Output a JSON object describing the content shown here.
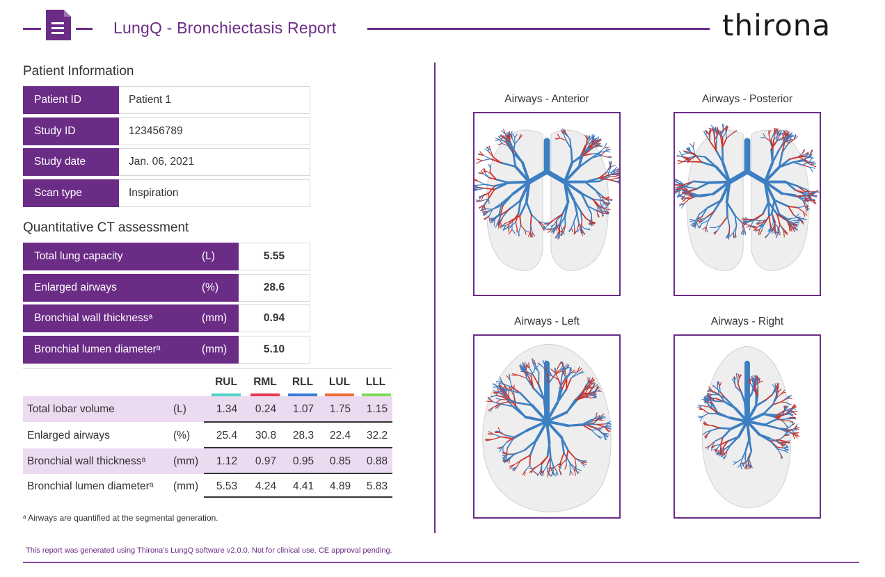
{
  "header": {
    "title": "LungQ - Bronchiectasis Report",
    "logo_text": "thirona",
    "icon": "document-icon",
    "accent_color": "#6b2c86"
  },
  "patient_info": {
    "title": "Patient Information",
    "rows": [
      {
        "label": "Patient ID",
        "value": "Patient 1"
      },
      {
        "label": "Study ID",
        "value": "123456789"
      },
      {
        "label": "Study date",
        "value": "Jan. 06, 2021"
      },
      {
        "label": "Scan type",
        "value": "Inspiration"
      }
    ]
  },
  "quantitative": {
    "title": "Quantitative CT assessment",
    "rows": [
      {
        "label": "Total lung capacity",
        "unit": "(L)",
        "value": "5.55"
      },
      {
        "label": "Enlarged airways",
        "unit": "(%)",
        "value": "28.6"
      },
      {
        "label": "Bronchial wall thicknessᵃ",
        "unit": "(mm)",
        "value": "0.94"
      },
      {
        "label": "Bronchial lumen diameterᵃ",
        "unit": "(mm)",
        "value": "5.10"
      }
    ]
  },
  "lobar": {
    "lobes": [
      {
        "name": "RUL",
        "color": "#4fd1c5"
      },
      {
        "name": "RML",
        "color": "#e8384f"
      },
      {
        "name": "RLL",
        "color": "#3a7bd5"
      },
      {
        "name": "LUL",
        "color": "#f26b38"
      },
      {
        "name": "LLL",
        "color": "#7ed957"
      }
    ],
    "rows": [
      {
        "label": "Total lobar volume",
        "unit": "(L)",
        "values": [
          "1.34",
          "0.24",
          "1.07",
          "1.75",
          "1.15"
        ]
      },
      {
        "label": "Enlarged airways",
        "unit": "(%)",
        "values": [
          "25.4",
          "30.8",
          "28.3",
          "22.4",
          "32.2"
        ]
      },
      {
        "label": "Bronchial wall thicknessᵃ",
        "unit": "(mm)",
        "values": [
          "1.12",
          "0.97",
          "0.95",
          "0.85",
          "0.88"
        ]
      },
      {
        "label": "Bronchial lumen diameterᵃ",
        "unit": "(mm)",
        "values": [
          "5.53",
          "4.24",
          "4.41",
          "4.89",
          "5.83"
        ]
      }
    ]
  },
  "footnote": "ᵃ Airways are quantified at the segmental generation.",
  "disclaimer": "This report was generated using Thirona’s LungQ software v2.0.0.  Not for clinical use. CE approval pending.",
  "views": [
    {
      "title": "Airways - Anterior"
    },
    {
      "title": "Airways - Posterior"
    },
    {
      "title": "Airways - Left"
    },
    {
      "title": "Airways - Right"
    }
  ],
  "airway_colors": {
    "normal": "#3d7fc1",
    "enlarged": "#c9342e"
  }
}
